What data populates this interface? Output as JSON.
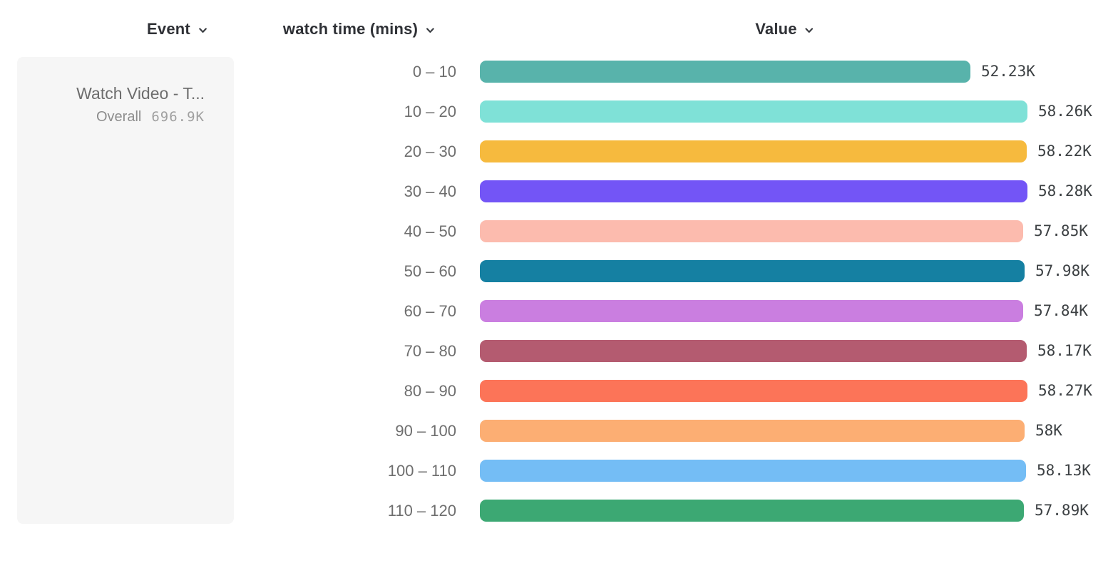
{
  "header": {
    "event_column": "Event",
    "breakdown_column": "watch time (mins)",
    "value_column": "Value"
  },
  "event_card": {
    "event_name": "Watch Video - T...",
    "overall_label": "Overall",
    "overall_value": "696.9K"
  },
  "chart_data": {
    "type": "bar",
    "orientation": "horizontal",
    "title": "",
    "categories": [
      "0 – 10",
      "10 – 20",
      "20 – 30",
      "30 – 40",
      "40 – 50",
      "50 – 60",
      "60 – 70",
      "70 – 80",
      "80 – 90",
      "90 – 100",
      "100 – 110",
      "110 – 120"
    ],
    "values": [
      52230,
      58260,
      58220,
      58280,
      57850,
      57980,
      57840,
      58170,
      58270,
      58000,
      58130,
      57890
    ],
    "value_labels": [
      "52.23K",
      "58.26K",
      "58.22K",
      "58.28K",
      "57.85K",
      "57.98K",
      "57.84K",
      "58.17K",
      "58.27K",
      "58K",
      "58.13K",
      "57.89K"
    ],
    "colors": [
      "#58b3ab",
      "#7fe1d7",
      "#f6ba3e",
      "#7355f6",
      "#fcbbae",
      "#1580a2",
      "#ca7ee0",
      "#b45b70",
      "#fc7458",
      "#fcae73",
      "#74bdf5",
      "#3ca873"
    ],
    "xlim": [
      0,
      58280
    ],
    "grid": false,
    "legend": "none",
    "axis_labels_visible": false
  }
}
